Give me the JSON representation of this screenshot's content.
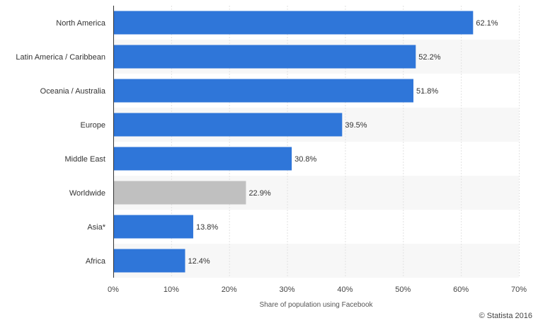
{
  "chart_data": {
    "type": "bar",
    "orientation": "horizontal",
    "categories": [
      "North America",
      "Latin America / Caribbean",
      "Oceania / Australia",
      "Europe",
      "Middle East",
      "Worldwide",
      "Asia*",
      "Africa"
    ],
    "values": [
      62.1,
      52.2,
      51.8,
      39.5,
      30.8,
      22.9,
      13.8,
      12.4
    ],
    "value_labels": [
      "62.1%",
      "52.2%",
      "51.8%",
      "39.5%",
      "30.8%",
      "22.9%",
      "13.8%",
      "12.4%"
    ],
    "xlabel": "Share of population using Facebook",
    "xlim": [
      0,
      70
    ],
    "xticks": [
      0,
      10,
      20,
      30,
      40,
      50,
      60,
      70
    ],
    "xtick_labels": [
      "0%",
      "10%",
      "20%",
      "30%",
      "40%",
      "50%",
      "60%",
      "70%"
    ],
    "grid": true,
    "colors": {
      "bar": "#2f76d9",
      "highlight": "#c0c0c0",
      "band": "#f7f7f7",
      "grid": "#e2e2e2"
    },
    "highlighted_category": "Worldwide"
  },
  "credit": "© Statista 2016"
}
